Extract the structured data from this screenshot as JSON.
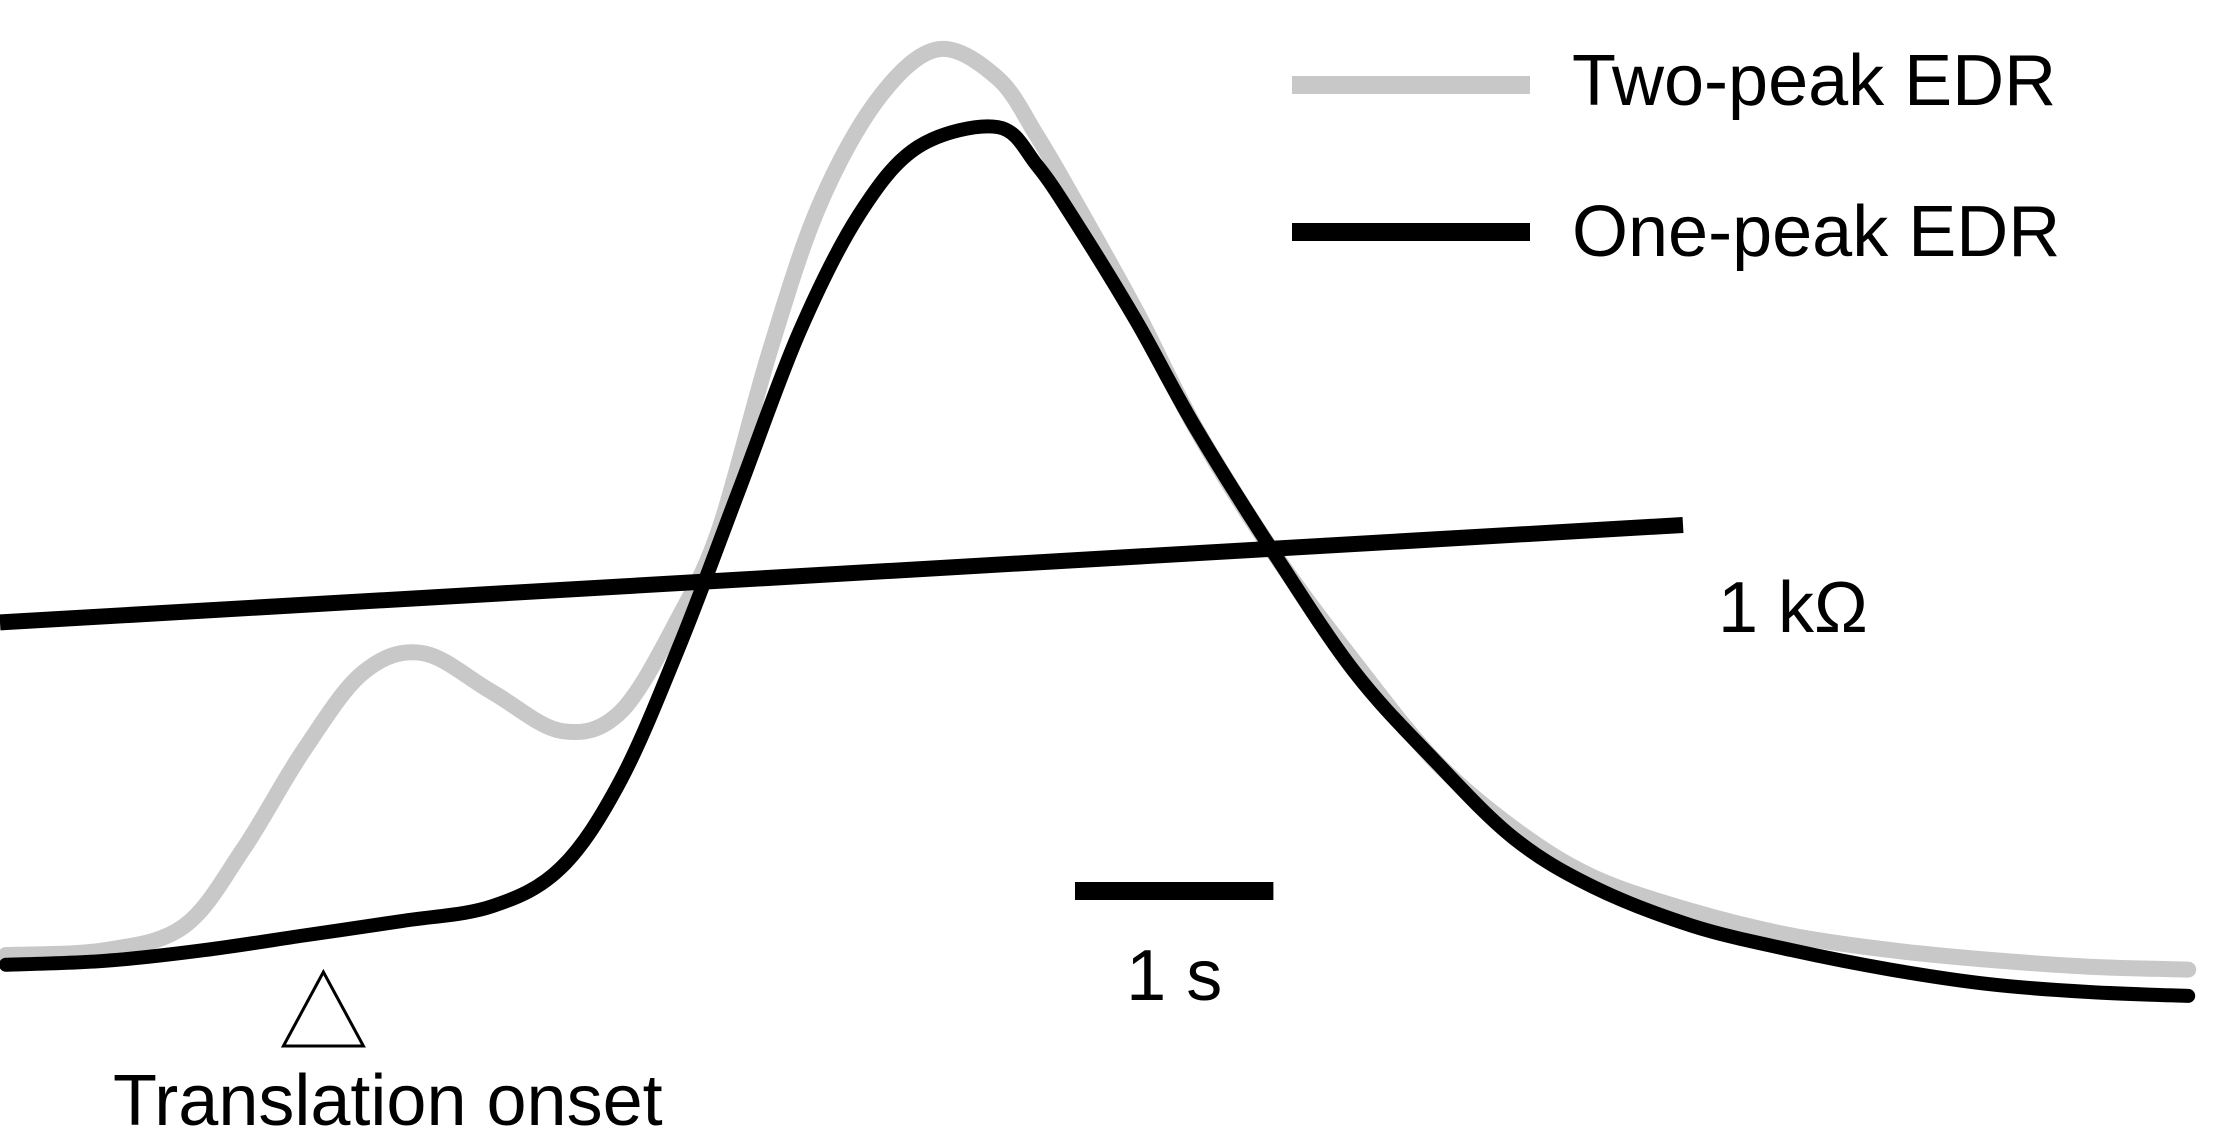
{
  "chart_data": {
    "type": "line",
    "title": "",
    "xlabel": "",
    "ylabel": "",
    "x_unit": "s",
    "y_unit": "kΩ",
    "xlim": [
      0,
      11.1
    ],
    "ylim": [
      0,
      9.6
    ],
    "grid": false,
    "legend": "top-right",
    "series": [
      {
        "name": "Two-peak EDR",
        "color": "#c8c8c8",
        "x": [
          0,
          0.5,
          0.9,
          1.2,
          1.5,
          1.8,
          2.1,
          2.45,
          2.8,
          3.1,
          3.4,
          3.6,
          3.85,
          4.1,
          4.4,
          4.7,
          5.0,
          5.2,
          5.4,
          5.7,
          6.0,
          6.4,
          6.8,
          7.2,
          7.6,
          8.0,
          8.5,
          9.0,
          9.5,
          10.0,
          10.5,
          11.0
        ],
        "y": [
          0.0,
          0.05,
          0.3,
          1.1,
          2.1,
          2.9,
          3.1,
          2.7,
          2.3,
          2.5,
          3.5,
          4.4,
          6.2,
          7.7,
          8.8,
          9.3,
          9.0,
          8.4,
          7.7,
          6.6,
          5.4,
          4.1,
          3.0,
          2.0,
          1.3,
          0.8,
          0.45,
          0.2,
          0.05,
          -0.05,
          -0.12,
          -0.15
        ]
      },
      {
        "name": "One-peak EDR",
        "color": "#000000",
        "x": [
          0,
          0.5,
          1.0,
          1.5,
          2.0,
          2.45,
          2.8,
          3.1,
          3.4,
          3.7,
          4.0,
          4.3,
          4.6,
          5.0,
          5.2,
          5.4,
          5.7,
          6.0,
          6.4,
          6.8,
          7.2,
          7.6,
          8.0,
          8.5,
          9.0,
          9.5,
          10.0,
          10.5,
          11.0
        ],
        "y": [
          -0.1,
          -0.06,
          0.05,
          0.2,
          0.35,
          0.5,
          0.9,
          1.8,
          3.2,
          4.8,
          6.4,
          7.6,
          8.3,
          8.5,
          8.1,
          7.5,
          6.5,
          5.4,
          4.1,
          2.9,
          2.0,
          1.2,
          0.7,
          0.3,
          0.05,
          -0.15,
          -0.3,
          -0.38,
          -0.42
        ]
      }
    ],
    "annotations": {
      "onset_label": "Translation onset",
      "onset_time": 1.6
    },
    "scale_bars": {
      "time_label": "1 s",
      "time_value": 1,
      "resistance_label": "1 kΩ",
      "resistance_value": 1
    }
  }
}
